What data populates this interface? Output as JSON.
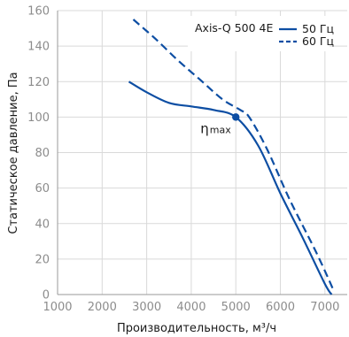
{
  "chart_data": {
    "type": "line",
    "x_ticks": [
      "1000",
      "2000",
      "3000",
      "4000",
      "5000",
      "6000",
      "7000"
    ],
    "y_ticks": [
      "0",
      "20",
      "40",
      "60",
      "80",
      "100",
      "120",
      "140",
      "160"
    ],
    "xlim": [
      1000,
      7500
    ],
    "ylim": [
      0,
      160
    ],
    "xlabel": "Производительность, м³/ч",
    "ylabel": "Статическое давление, Па",
    "grid": true,
    "legend_title": "Axis-Q 500 4E",
    "legend_position": "top-right",
    "series": [
      {
        "name": "50 Гц",
        "style": "solid",
        "color": "#0d4ea3",
        "x": [
          2600,
          3000,
          3500,
          4000,
          4500,
          5000,
          5500,
          6000,
          6500,
          7000,
          7150
        ],
        "y": [
          120,
          114,
          108,
          106,
          104,
          100,
          84,
          57,
          32,
          6,
          0
        ]
      },
      {
        "name": "60 Гц",
        "style": "dashed",
        "color": "#0d4ea3",
        "x": [
          2700,
          3200,
          3700,
          4200,
          4700,
          5100,
          5300,
          5700,
          6200,
          6800,
          7200
        ],
        "y": [
          155,
          144,
          132,
          121,
          110,
          104,
          100,
          82,
          54,
          24,
          2
        ]
      }
    ],
    "annotation": {
      "text": "η",
      "sub": "max",
      "x": 5000,
      "y": 100
    }
  }
}
